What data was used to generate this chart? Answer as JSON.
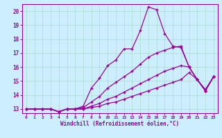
{
  "xlabel": "Windchill (Refroidissement éolien,°C)",
  "background_color": "#cceeff",
  "line_color": "#990099",
  "xlim": [
    -0.5,
    23.5
  ],
  "ylim": [
    12.7,
    20.5
  ],
  "yticks": [
    13,
    14,
    15,
    16,
    17,
    18,
    19,
    20
  ],
  "xticks": [
    0,
    1,
    2,
    3,
    4,
    5,
    6,
    7,
    8,
    9,
    10,
    11,
    12,
    13,
    14,
    15,
    16,
    17,
    18,
    19,
    20,
    21,
    22,
    23
  ],
  "line1_x": [
    0,
    1,
    2,
    3,
    4,
    5,
    6,
    7,
    8,
    9,
    10,
    11,
    12,
    13,
    14,
    15,
    16,
    17,
    18,
    19,
    20,
    21,
    22,
    23
  ],
  "line1_y": [
    13.0,
    13.0,
    13.0,
    13.0,
    12.8,
    13.0,
    13.0,
    13.2,
    14.5,
    15.2,
    16.1,
    16.5,
    17.3,
    17.3,
    18.6,
    20.3,
    20.1,
    18.4,
    17.5,
    17.4,
    16.0,
    15.1,
    14.4,
    15.3
  ],
  "line2_x": [
    0,
    1,
    2,
    3,
    4,
    5,
    6,
    7,
    8,
    9,
    10,
    11,
    12,
    13,
    14,
    15,
    16,
    17,
    18,
    19,
    20,
    21,
    22,
    23
  ],
  "line2_y": [
    13.0,
    13.0,
    13.0,
    13.0,
    12.8,
    13.0,
    13.0,
    13.1,
    13.5,
    13.9,
    14.5,
    14.9,
    15.3,
    15.7,
    16.2,
    16.7,
    17.0,
    17.2,
    17.4,
    17.5,
    16.0,
    15.1,
    14.3,
    15.3
  ],
  "line3_x": [
    0,
    1,
    2,
    3,
    4,
    5,
    6,
    7,
    8,
    9,
    10,
    11,
    12,
    13,
    14,
    15,
    16,
    17,
    18,
    19,
    20,
    21,
    22,
    23
  ],
  "line3_y": [
    13.0,
    13.0,
    13.0,
    13.0,
    12.8,
    13.0,
    13.0,
    13.0,
    13.2,
    13.4,
    13.7,
    13.9,
    14.2,
    14.5,
    14.8,
    15.1,
    15.4,
    15.7,
    15.9,
    16.1,
    16.0,
    15.1,
    14.3,
    15.3
  ],
  "line4_x": [
    0,
    1,
    2,
    3,
    4,
    5,
    6,
    7,
    8,
    9,
    10,
    11,
    12,
    13,
    14,
    15,
    16,
    17,
    18,
    19,
    20,
    21,
    22,
    23
  ],
  "line4_y": [
    13.0,
    13.0,
    13.0,
    13.0,
    12.8,
    13.0,
    13.0,
    13.0,
    13.1,
    13.2,
    13.4,
    13.5,
    13.7,
    13.9,
    14.1,
    14.3,
    14.5,
    14.7,
    14.9,
    15.1,
    15.6,
    15.1,
    14.3,
    15.3
  ]
}
